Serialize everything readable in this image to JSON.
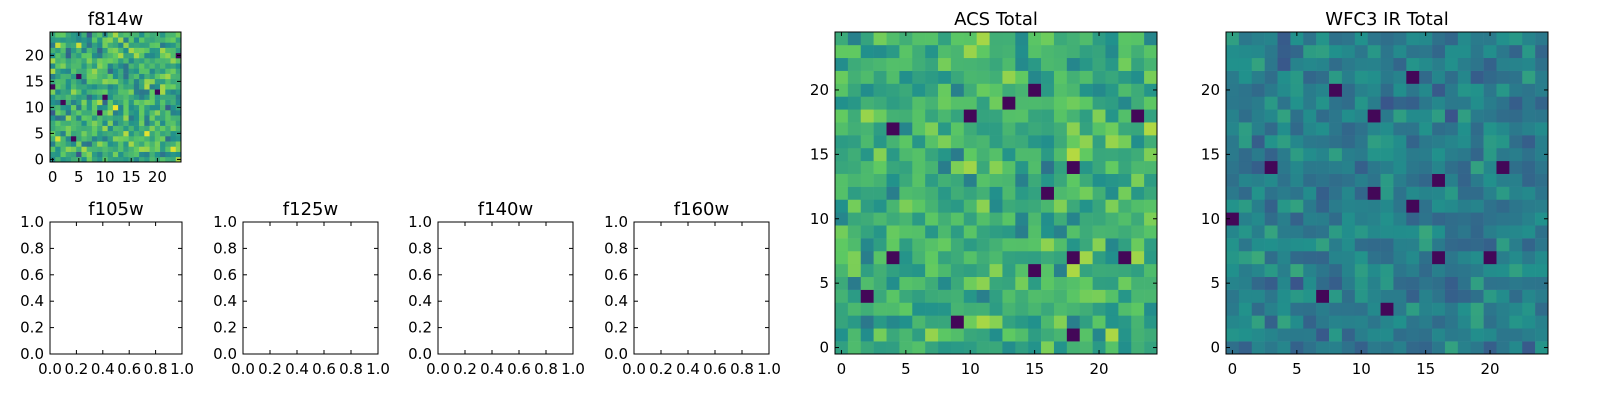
{
  "colormap": [
    "#440154",
    "#3b528b",
    "#21918c",
    "#5ec962",
    "#fde725"
  ],
  "chart_data": [
    {
      "type": "heatmap",
      "panel": "f814w",
      "title": "f814w",
      "grid": [
        25,
        25
      ],
      "seed": 11,
      "mean": 0.62,
      "spread": 0.22,
      "xlim": [
        -0.5,
        24.5
      ],
      "ylim": [
        -0.5,
        24.5
      ],
      "xticks": [
        0,
        5,
        10,
        15,
        20
      ],
      "yticks": [
        0,
        5,
        10,
        15,
        20
      ]
    },
    {
      "type": "empty",
      "panel": "f105w",
      "title": "f105w",
      "xlim": [
        0,
        1
      ],
      "ylim": [
        0,
        1
      ],
      "xticks": [
        "0.0",
        "0.2",
        "0.4",
        "0.6",
        "0.8",
        "1.0"
      ],
      "yticks": [
        "0.0",
        "0.2",
        "0.4",
        "0.6",
        "0.8",
        "1.0"
      ]
    },
    {
      "type": "empty",
      "panel": "f125w",
      "title": "f125w",
      "xlim": [
        0,
        1
      ],
      "ylim": [
        0,
        1
      ],
      "xticks": [
        "0.0",
        "0.2",
        "0.4",
        "0.6",
        "0.8",
        "1.0"
      ],
      "yticks": [
        "0.0",
        "0.2",
        "0.4",
        "0.6",
        "0.8",
        "1.0"
      ]
    },
    {
      "type": "empty",
      "panel": "f140w",
      "title": "f140w",
      "xlim": [
        0,
        1
      ],
      "ylim": [
        0,
        1
      ],
      "xticks": [
        "0.0",
        "0.2",
        "0.4",
        "0.6",
        "0.8",
        "1.0"
      ],
      "yticks": [
        "0.0",
        "0.2",
        "0.4",
        "0.6",
        "0.8",
        "1.0"
      ]
    },
    {
      "type": "empty",
      "panel": "f160w",
      "title": "f160w",
      "xlim": [
        0,
        1
      ],
      "ylim": [
        0,
        1
      ],
      "xticks": [
        "0.0",
        "0.2",
        "0.4",
        "0.6",
        "0.8",
        "1.0"
      ],
      "yticks": [
        "0.0",
        "0.2",
        "0.4",
        "0.6",
        "0.8",
        "1.0"
      ]
    },
    {
      "type": "heatmap",
      "panel": "acs-total",
      "title": "ACS Total",
      "grid": [
        25,
        25
      ],
      "seed": 23,
      "mean": 0.63,
      "spread": 0.17,
      "xlim": [
        -0.5,
        24.5
      ],
      "ylim": [
        -0.5,
        24.5
      ],
      "xticks": [
        0,
        5,
        10,
        15,
        20
      ],
      "yticks": [
        0,
        5,
        10,
        15,
        20
      ]
    },
    {
      "type": "heatmap",
      "panel": "wfc3-ir-total",
      "title": "WFC3 IR Total",
      "grid": [
        25,
        25
      ],
      "seed": 37,
      "mean": 0.43,
      "spread": 0.12,
      "xlim": [
        -0.5,
        24.5
      ],
      "ylim": [
        -0.5,
        24.5
      ],
      "xticks": [
        0,
        5,
        10,
        15,
        20
      ],
      "yticks": [
        0,
        5,
        10,
        15,
        20
      ]
    }
  ]
}
